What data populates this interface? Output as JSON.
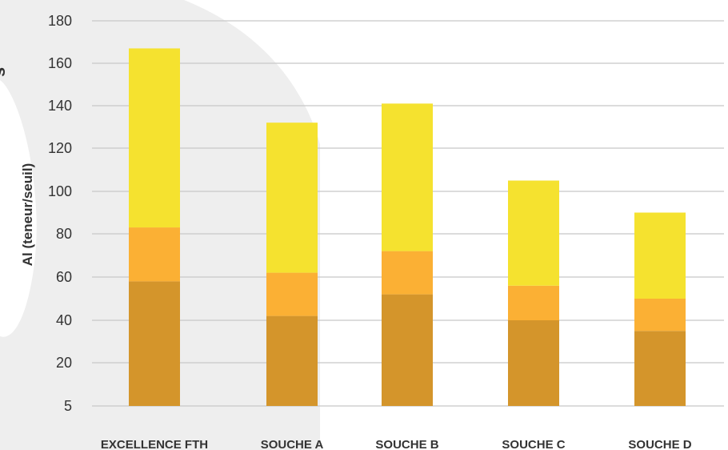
{
  "page_side_text": "s",
  "colors": {
    "background_shape": "#eeeeee",
    "grid": "#c8c8c8",
    "text": "#333333"
  },
  "chart_data": {
    "type": "bar",
    "stacked": true,
    "ylabel": "Al (teneur/seuil)",
    "y_ticks": [
      "5",
      "20",
      "40",
      "60",
      "80",
      "100",
      "120",
      "140",
      "160",
      "180"
    ],
    "ylim": [
      0,
      180
    ],
    "grid": true,
    "legend": "none",
    "categories": [
      "EXCELLENCE FTH",
      "SOUCHE A",
      "SOUCHE B",
      "SOUCHE C",
      "SOUCHE D"
    ],
    "series": [
      {
        "color": "#d4952b",
        "values": [
          58,
          42,
          52,
          40,
          35
        ]
      },
      {
        "color": "#fbb034",
        "values": [
          25,
          20,
          20,
          16,
          15
        ]
      },
      {
        "color": "#f5e22f",
        "values": [
          84,
          70,
          69,
          49,
          40
        ]
      }
    ]
  }
}
